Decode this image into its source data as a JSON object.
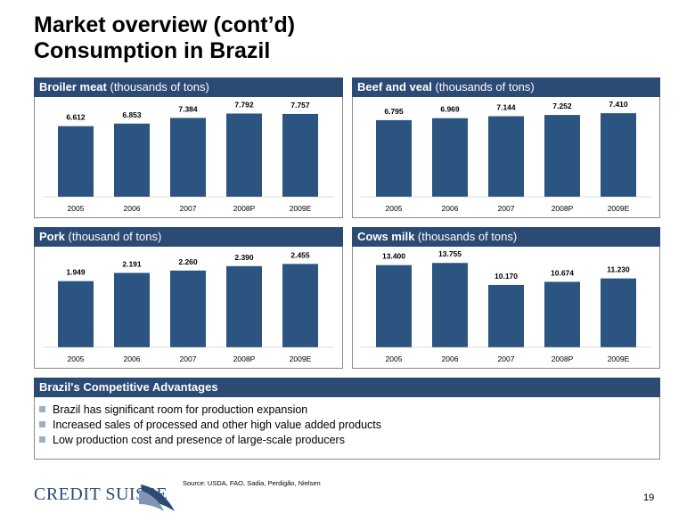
{
  "title": {
    "line1": "Market overview (cont’d)",
    "line2": "Consumption in Brazil"
  },
  "panels": [
    {
      "bold": "Broiler meat",
      "rest": " (thousands of tons)"
    },
    {
      "bold": "Beef and veal",
      "rest": " (thousands of tons)"
    },
    {
      "bold": "Pork",
      "rest": " (thousand of tons)"
    },
    {
      "bold": "Cows milk",
      "rest": " (thousands of tons)"
    }
  ],
  "chart_data": [
    {
      "type": "bar",
      "title": "Broiler meat (thousands of tons)",
      "categories": [
        "2005",
        "2006",
        "2007",
        "2008P",
        "2009E"
      ],
      "values": [
        6612,
        6853,
        7384,
        7792,
        7757
      ],
      "labels": [
        "6.612",
        "6.853",
        "7.384",
        "7.792",
        "7.757"
      ],
      "ylim": [
        0,
        8500
      ],
      "color": "#2b5480"
    },
    {
      "type": "bar",
      "title": "Beef and veal (thousands of tons)",
      "categories": [
        "2005",
        "2006",
        "2007",
        "2008P",
        "2009E"
      ],
      "values": [
        6795,
        6969,
        7144,
        7252,
        7410
      ],
      "labels": [
        "6.795",
        "6.969",
        "7.144",
        "7.252",
        "7.410"
      ],
      "ylim": [
        0,
        8050
      ],
      "color": "#2b5480"
    },
    {
      "type": "bar",
      "title": "Pork (thousand of tons)",
      "categories": [
        "2005",
        "2006",
        "2007",
        "2008P",
        "2009E"
      ],
      "values": [
        1949,
        2191,
        2260,
        2390,
        2455
      ],
      "labels": [
        "1.949",
        "2.191",
        "2.260",
        "2.390",
        "2.455"
      ],
      "ylim": [
        0,
        2700
      ],
      "color": "#2b5480"
    },
    {
      "type": "bar",
      "title": "Cows milk (thousands of tons)",
      "categories": [
        "2005",
        "2006",
        "2007",
        "2008P",
        "2009E"
      ],
      "values": [
        13400,
        13755,
        10170,
        10674,
        11230
      ],
      "labels": [
        "13.400",
        "13.755",
        "10.170",
        "10.674",
        "11.230"
      ],
      "ylim": [
        0,
        14950
      ],
      "color": "#2b5480"
    }
  ],
  "advantages": {
    "heading": "Brazil's Competitive Advantages",
    "items": [
      "Brazil has significant room for production expansion",
      "Increased sales of processed and other high value added products",
      "Low production cost and presence of large-scale producers"
    ]
  },
  "source": "Source: USDA, FAO, Sadia, Perdigão, Nielsen",
  "logo": "CREDIT SUISSE",
  "page_number": "19",
  "colors": {
    "header": "#2b4a74",
    "bar": "#2b5480",
    "bullet": "#9fb0c5"
  }
}
